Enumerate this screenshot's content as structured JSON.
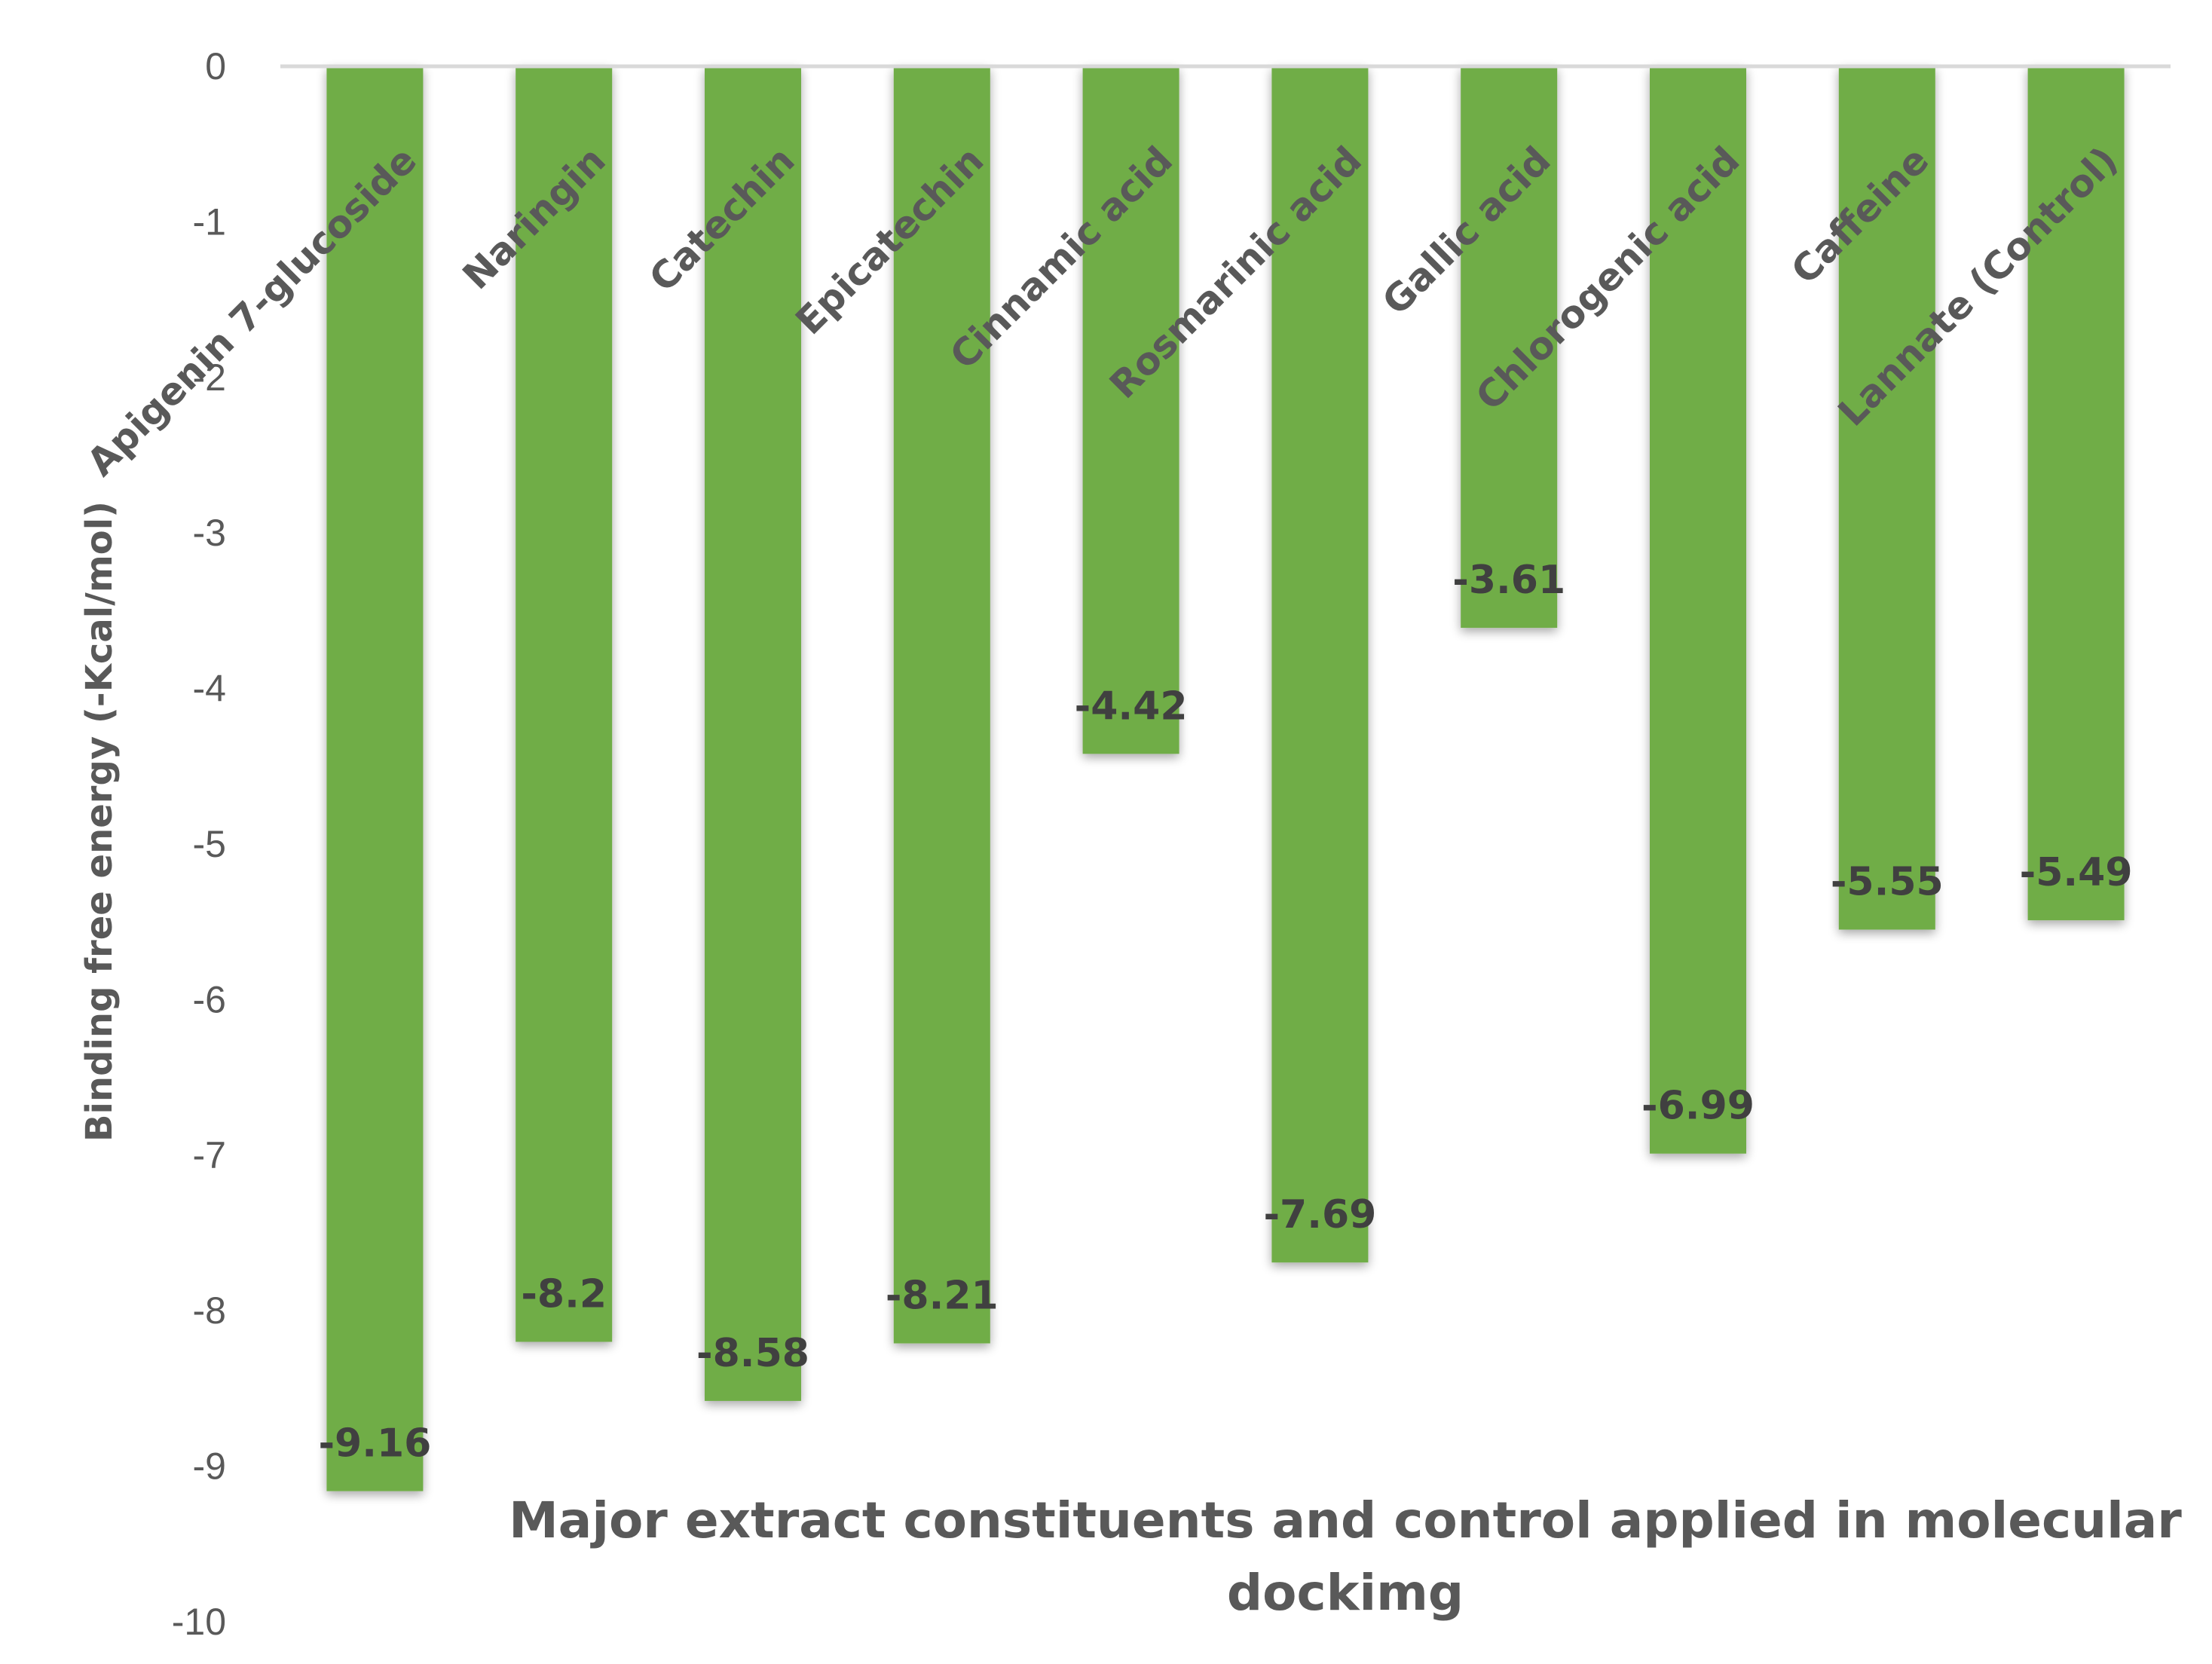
{
  "chart_data": {
    "type": "bar",
    "categories": [
      "Apigenin 7-glucoside",
      "Naringin",
      "Catechin",
      "Epicatechin",
      "Cinnamic acid",
      "Rosmarinic acid",
      "Gallic acid",
      "Chlorogenic acid",
      "Caffeine",
      "Lannate (Control)"
    ],
    "values": [
      -9.16,
      -8.2,
      -8.58,
      -8.21,
      -4.42,
      -7.69,
      -3.61,
      -6.99,
      -5.55,
      -5.49
    ],
    "data_labels": [
      "-9.16",
      "-8.2",
      "-8.58",
      "-8.21",
      "-4.42",
      "-7.69",
      "-3.61",
      "-6.99",
      "-5.55",
      "-5.49"
    ],
    "ylim": [
      -10,
      0
    ],
    "yticks": [
      0,
      -1,
      -2,
      -3,
      -4,
      -5,
      -6,
      -7,
      -8,
      -9,
      -10
    ],
    "ylabel": "Binding free energy (-Kcal/mol)",
    "xlabel_lines": [
      "Major extract constituents and control applied in molecular",
      "dockimg"
    ],
    "bar_color": "#70AD47",
    "axis_color": "#D9D9D9",
    "grid": false,
    "legend": "none"
  }
}
